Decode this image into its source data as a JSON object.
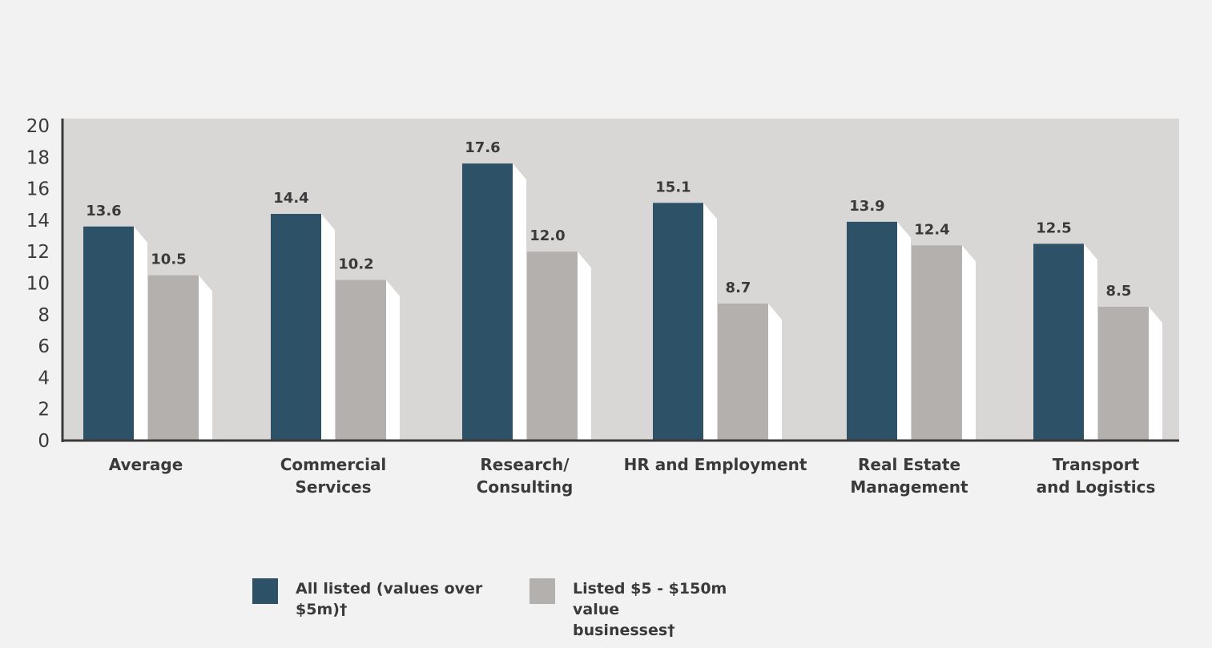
{
  "chart_data": {
    "type": "bar",
    "categories": [
      [
        "Average"
      ],
      [
        "Commercial",
        "Services"
      ],
      [
        "Research/",
        "Consulting"
      ],
      [
        "HR and Employment"
      ],
      [
        "Real Estate",
        "Management"
      ],
      [
        "Transport",
        "and Logistics"
      ]
    ],
    "series": [
      {
        "name": "All listed (values over $5m)†",
        "color": "#2d5166",
        "values": [
          13.6,
          14.4,
          17.6,
          15.1,
          13.9,
          12.5
        ],
        "labels": [
          "13.6",
          "14.4",
          "17.6",
          "15.1",
          "13.9",
          "12.5"
        ]
      },
      {
        "name": "Listed $5 - $150m value businesses†",
        "color": "#b3b0ae",
        "values": [
          10.5,
          10.2,
          12.0,
          8.7,
          12.4,
          8.5
        ],
        "labels": [
          "10.5",
          "10.2",
          "12.0",
          "8.7",
          "12.4",
          "8.5"
        ]
      }
    ],
    "ylim": [
      0,
      20
    ],
    "yticks": [
      "0",
      "2",
      "4",
      "6",
      "8",
      "10",
      "12",
      "14",
      "16",
      "18",
      "20"
    ],
    "plot_background": "#d8d7d6",
    "grid": false,
    "legend_position": "bottom"
  },
  "legend": {
    "items": [
      {
        "label_line1": "All listed (values over",
        "label_line2": "$5m)†",
        "color": "#2d5166"
      },
      {
        "label_line1": "Listed $5 - $150m value",
        "label_line2": "businesses†",
        "color": "#b3b0ae"
      }
    ]
  }
}
